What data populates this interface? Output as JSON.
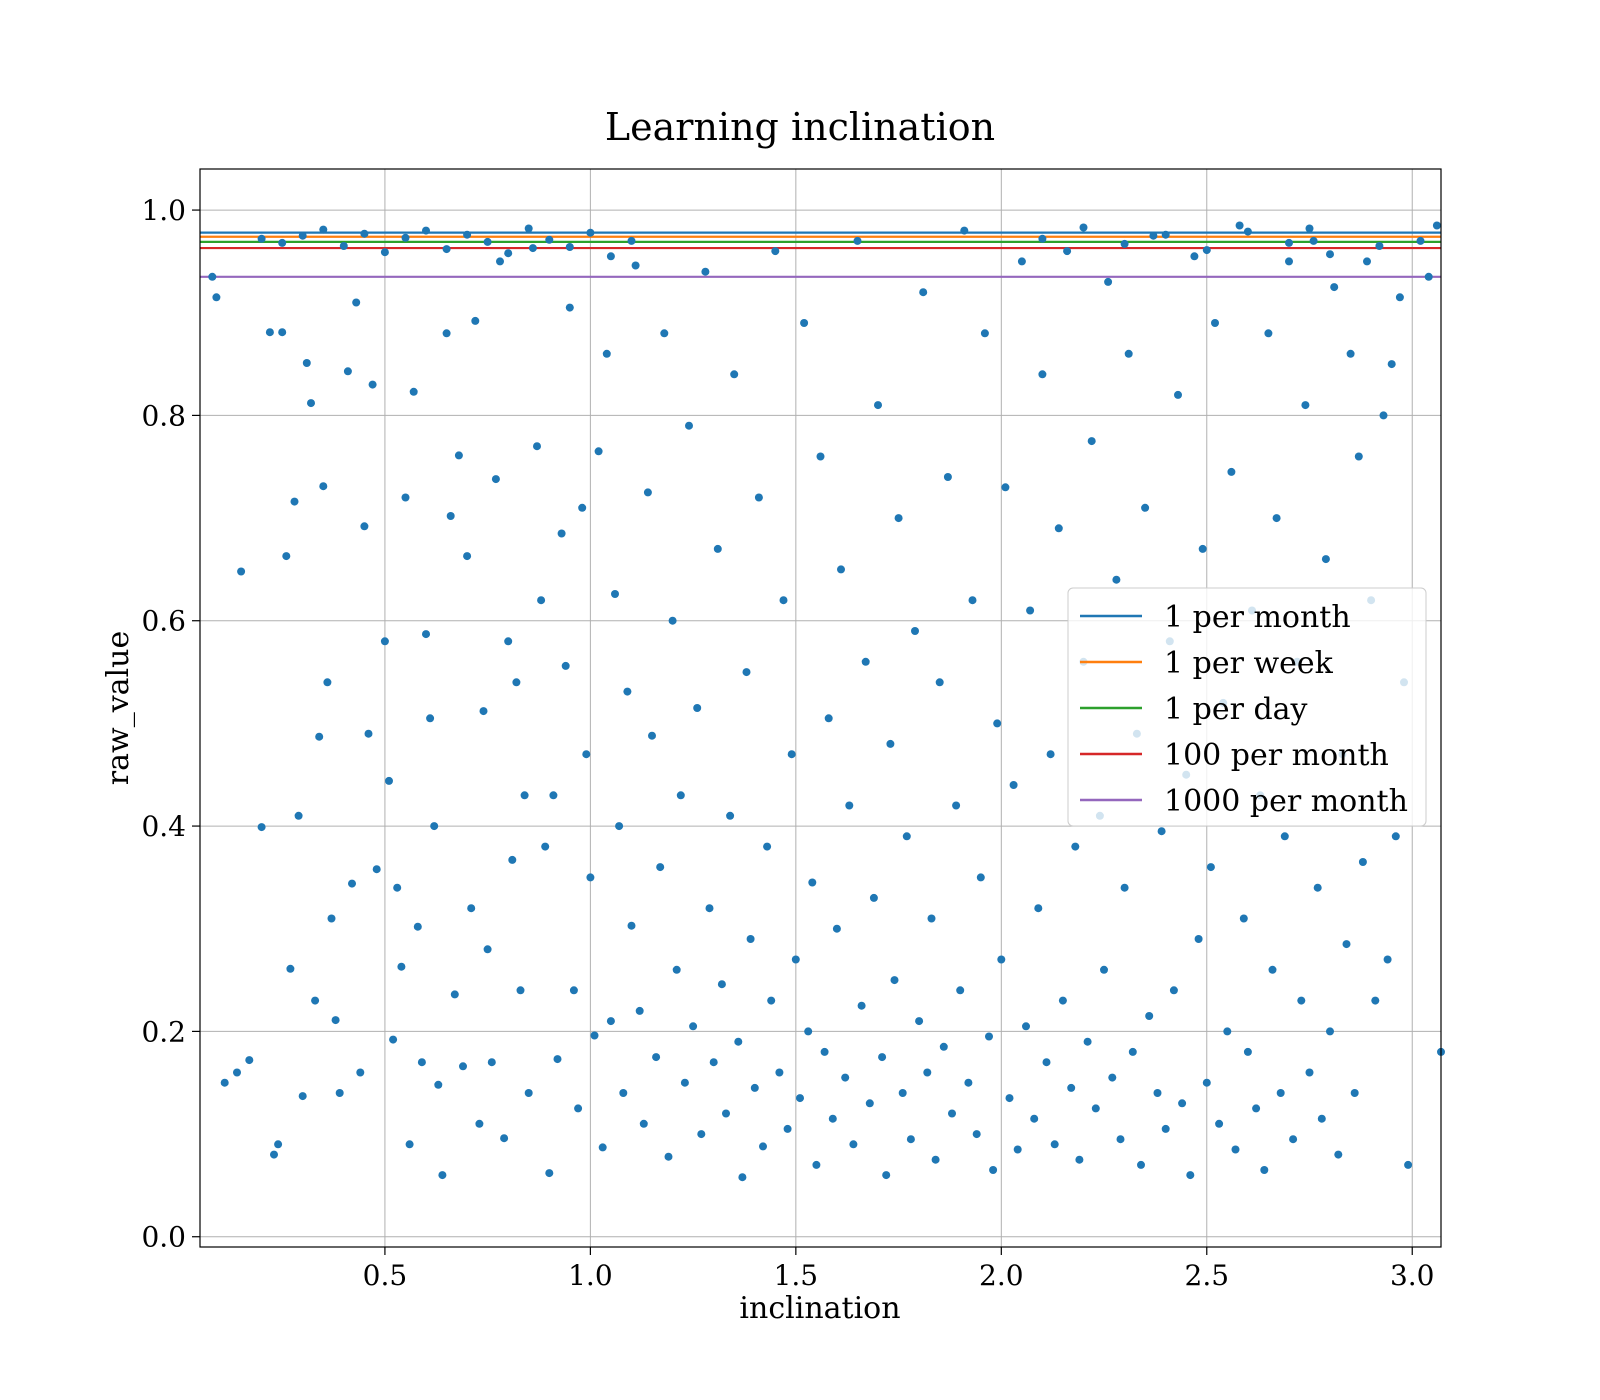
{
  "chart_data": {
    "type": "scatter",
    "title": "Learning inclination",
    "xlabel": "inclination",
    "ylabel": "raw_value",
    "xlim": [
      0.05,
      3.07
    ],
    "ylim": [
      -0.01,
      1.04
    ],
    "xticks": [
      0.5,
      1.0,
      1.5,
      2.0,
      2.5,
      3.0
    ],
    "xtick_labels": [
      "0.5",
      "1.0",
      "1.5",
      "2.0",
      "2.5",
      "3.0"
    ],
    "yticks": [
      0.0,
      0.2,
      0.4,
      0.6,
      0.8,
      1.0
    ],
    "ytick_labels": [
      "0.0",
      "0.2",
      "0.4",
      "0.6",
      "0.8",
      "1.0"
    ],
    "grid": true,
    "legend_position": "center-right",
    "point_color": "#1f77b4",
    "hlines": [
      {
        "name": "1 per month",
        "y": 0.978,
        "color": "#1f77b4"
      },
      {
        "name": "1 per week",
        "y": 0.974,
        "color": "#ff7f0e"
      },
      {
        "name": "1 per day",
        "y": 0.969,
        "color": "#2ca02c"
      },
      {
        "name": "100 per month",
        "y": 0.963,
        "color": "#d62728"
      },
      {
        "name": "1000 per month",
        "y": 0.935,
        "color": "#9467bd"
      }
    ],
    "points": [
      [
        0.08,
        0.935
      ],
      [
        0.09,
        0.915
      ],
      [
        0.11,
        0.15
      ],
      [
        0.14,
        0.16
      ],
      [
        0.15,
        0.648
      ],
      [
        0.17,
        0.172
      ],
      [
        0.2,
        0.399
      ],
      [
        0.22,
        0.881
      ],
      [
        0.23,
        0.08
      ],
      [
        0.24,
        0.09
      ],
      [
        0.25,
        0.881
      ],
      [
        0.26,
        0.663
      ],
      [
        0.27,
        0.261
      ],
      [
        0.28,
        0.716
      ],
      [
        0.29,
        0.41
      ],
      [
        0.3,
        0.137
      ],
      [
        0.31,
        0.851
      ],
      [
        0.32,
        0.812
      ],
      [
        0.33,
        0.23
      ],
      [
        0.34,
        0.487
      ],
      [
        0.35,
        0.731
      ],
      [
        0.36,
        0.54
      ],
      [
        0.37,
        0.31
      ],
      [
        0.38,
        0.211
      ],
      [
        0.39,
        0.14
      ],
      [
        0.41,
        0.843
      ],
      [
        0.42,
        0.344
      ],
      [
        0.43,
        0.91
      ],
      [
        0.44,
        0.16
      ],
      [
        0.45,
        0.692
      ],
      [
        0.46,
        0.49
      ],
      [
        0.47,
        0.83
      ],
      [
        0.48,
        0.358
      ],
      [
        0.5,
        0.58
      ],
      [
        0.51,
        0.444
      ],
      [
        0.52,
        0.192
      ],
      [
        0.53,
        0.34
      ],
      [
        0.54,
        0.263
      ],
      [
        0.55,
        0.72
      ],
      [
        0.56,
        0.09
      ],
      [
        0.57,
        0.823
      ],
      [
        0.58,
        0.302
      ],
      [
        0.59,
        0.17
      ],
      [
        0.6,
        0.587
      ],
      [
        0.61,
        0.505
      ],
      [
        0.62,
        0.4
      ],
      [
        0.63,
        0.148
      ],
      [
        0.64,
        0.06
      ],
      [
        0.65,
        0.88
      ],
      [
        0.66,
        0.702
      ],
      [
        0.67,
        0.236
      ],
      [
        0.68,
        0.761
      ],
      [
        0.69,
        0.166
      ],
      [
        0.7,
        0.663
      ],
      [
        0.71,
        0.32
      ],
      [
        0.72,
        0.892
      ],
      [
        0.73,
        0.11
      ],
      [
        0.74,
        0.512
      ],
      [
        0.75,
        0.28
      ],
      [
        0.76,
        0.17
      ],
      [
        0.77,
        0.738
      ],
      [
        0.78,
        0.95
      ],
      [
        0.79,
        0.096
      ],
      [
        0.8,
        0.58
      ],
      [
        0.81,
        0.367
      ],
      [
        0.82,
        0.54
      ],
      [
        0.83,
        0.24
      ],
      [
        0.84,
        0.43
      ],
      [
        0.85,
        0.14
      ],
      [
        0.86,
        0.963
      ],
      [
        0.87,
        0.77
      ],
      [
        0.88,
        0.62
      ],
      [
        0.89,
        0.38
      ],
      [
        0.9,
        0.062
      ],
      [
        0.91,
        0.43
      ],
      [
        0.92,
        0.173
      ],
      [
        0.93,
        0.685
      ],
      [
        0.94,
        0.556
      ],
      [
        0.95,
        0.905
      ],
      [
        0.96,
        0.24
      ],
      [
        0.97,
        0.125
      ],
      [
        0.98,
        0.71
      ],
      [
        0.99,
        0.47
      ],
      [
        1.0,
        0.35
      ],
      [
        1.01,
        0.196
      ],
      [
        1.02,
        0.765
      ],
      [
        1.03,
        0.087
      ],
      [
        1.04,
        0.86
      ],
      [
        1.05,
        0.21
      ],
      [
        1.06,
        0.626
      ],
      [
        1.07,
        0.4
      ],
      [
        1.08,
        0.14
      ],
      [
        1.09,
        0.531
      ],
      [
        1.1,
        0.303
      ],
      [
        1.11,
        0.946
      ],
      [
        1.12,
        0.22
      ],
      [
        1.13,
        0.11
      ],
      [
        1.14,
        0.725
      ],
      [
        1.15,
        0.488
      ],
      [
        1.16,
        0.175
      ],
      [
        1.17,
        0.36
      ],
      [
        1.18,
        0.88
      ],
      [
        1.19,
        0.078
      ],
      [
        1.2,
        0.6
      ],
      [
        1.21,
        0.26
      ],
      [
        1.22,
        0.43
      ],
      [
        1.23,
        0.15
      ],
      [
        1.24,
        0.79
      ],
      [
        1.25,
        0.205
      ],
      [
        1.26,
        0.515
      ],
      [
        1.27,
        0.1
      ],
      [
        1.28,
        0.94
      ],
      [
        1.29,
        0.32
      ],
      [
        1.3,
        0.17
      ],
      [
        1.31,
        0.67
      ],
      [
        1.32,
        0.246
      ],
      [
        1.33,
        0.12
      ],
      [
        1.34,
        0.41
      ],
      [
        1.35,
        0.84
      ],
      [
        1.36,
        0.19
      ],
      [
        1.37,
        0.058
      ],
      [
        1.38,
        0.55
      ],
      [
        1.39,
        0.29
      ],
      [
        1.4,
        0.145
      ],
      [
        1.41,
        0.72
      ],
      [
        1.42,
        0.088
      ],
      [
        1.43,
        0.38
      ],
      [
        1.44,
        0.23
      ],
      [
        1.45,
        0.96
      ],
      [
        1.46,
        0.16
      ],
      [
        1.47,
        0.62
      ],
      [
        1.48,
        0.105
      ],
      [
        1.49,
        0.47
      ],
      [
        1.5,
        0.27
      ],
      [
        1.51,
        0.135
      ],
      [
        1.52,
        0.89
      ],
      [
        1.53,
        0.2
      ],
      [
        1.54,
        0.345
      ],
      [
        1.55,
        0.07
      ],
      [
        1.56,
        0.76
      ],
      [
        1.57,
        0.18
      ],
      [
        1.58,
        0.505
      ],
      [
        1.59,
        0.115
      ],
      [
        1.6,
        0.3
      ],
      [
        1.61,
        0.65
      ],
      [
        1.62,
        0.155
      ],
      [
        1.63,
        0.42
      ],
      [
        1.64,
        0.09
      ],
      [
        1.65,
        0.97
      ],
      [
        1.66,
        0.225
      ],
      [
        1.67,
        0.56
      ],
      [
        1.68,
        0.13
      ],
      [
        1.69,
        0.33
      ],
      [
        1.7,
        0.81
      ],
      [
        1.71,
        0.175
      ],
      [
        1.72,
        0.06
      ],
      [
        1.73,
        0.48
      ],
      [
        1.74,
        0.25
      ],
      [
        1.75,
        0.7
      ],
      [
        1.76,
        0.14
      ],
      [
        1.77,
        0.39
      ],
      [
        1.78,
        0.095
      ],
      [
        1.79,
        0.59
      ],
      [
        1.8,
        0.21
      ],
      [
        1.81,
        0.92
      ],
      [
        1.82,
        0.16
      ],
      [
        1.83,
        0.31
      ],
      [
        1.84,
        0.075
      ],
      [
        1.85,
        0.54
      ],
      [
        1.86,
        0.185
      ],
      [
        1.87,
        0.74
      ],
      [
        1.88,
        0.12
      ],
      [
        1.89,
        0.42
      ],
      [
        1.9,
        0.24
      ],
      [
        1.91,
        0.98
      ],
      [
        1.92,
        0.15
      ],
      [
        1.93,
        0.62
      ],
      [
        1.94,
        0.1
      ],
      [
        1.95,
        0.35
      ],
      [
        1.96,
        0.88
      ],
      [
        1.97,
        0.195
      ],
      [
        1.98,
        0.065
      ],
      [
        1.99,
        0.5
      ],
      [
        2.0,
        0.27
      ],
      [
        2.01,
        0.73
      ],
      [
        2.02,
        0.135
      ],
      [
        2.03,
        0.44
      ],
      [
        2.04,
        0.085
      ],
      [
        2.05,
        0.95
      ],
      [
        2.06,
        0.205
      ],
      [
        2.07,
        0.61
      ],
      [
        2.08,
        0.115
      ],
      [
        2.09,
        0.32
      ],
      [
        2.1,
        0.84
      ],
      [
        2.11,
        0.17
      ],
      [
        2.12,
        0.47
      ],
      [
        2.13,
        0.09
      ],
      [
        2.14,
        0.69
      ],
      [
        2.15,
        0.23
      ],
      [
        2.16,
        0.96
      ],
      [
        2.17,
        0.145
      ],
      [
        2.18,
        0.38
      ],
      [
        2.19,
        0.075
      ],
      [
        2.2,
        0.56
      ],
      [
        2.21,
        0.19
      ],
      [
        2.22,
        0.775
      ],
      [
        2.23,
        0.125
      ],
      [
        2.24,
        0.41
      ],
      [
        2.25,
        0.26
      ],
      [
        2.26,
        0.93
      ],
      [
        2.27,
        0.155
      ],
      [
        2.28,
        0.64
      ],
      [
        2.29,
        0.095
      ],
      [
        2.3,
        0.34
      ],
      [
        2.31,
        0.86
      ],
      [
        2.32,
        0.18
      ],
      [
        2.33,
        0.49
      ],
      [
        2.34,
        0.07
      ],
      [
        2.35,
        0.71
      ],
      [
        2.36,
        0.215
      ],
      [
        2.37,
        0.975
      ],
      [
        2.38,
        0.14
      ],
      [
        2.39,
        0.395
      ],
      [
        2.4,
        0.105
      ],
      [
        2.41,
        0.58
      ],
      [
        2.42,
        0.24
      ],
      [
        2.43,
        0.82
      ],
      [
        2.44,
        0.13
      ],
      [
        2.45,
        0.45
      ],
      [
        2.46,
        0.06
      ],
      [
        2.47,
        0.955
      ],
      [
        2.48,
        0.29
      ],
      [
        2.49,
        0.67
      ],
      [
        2.5,
        0.15
      ],
      [
        2.51,
        0.36
      ],
      [
        2.52,
        0.89
      ],
      [
        2.53,
        0.11
      ],
      [
        2.54,
        0.52
      ],
      [
        2.55,
        0.2
      ],
      [
        2.56,
        0.745
      ],
      [
        2.57,
        0.085
      ],
      [
        2.58,
        0.985
      ],
      [
        2.59,
        0.31
      ],
      [
        2.6,
        0.18
      ],
      [
        2.61,
        0.61
      ],
      [
        2.62,
        0.125
      ],
      [
        2.63,
        0.43
      ],
      [
        2.64,
        0.065
      ],
      [
        2.65,
        0.88
      ],
      [
        2.66,
        0.26
      ],
      [
        2.67,
        0.7
      ],
      [
        2.68,
        0.14
      ],
      [
        2.69,
        0.39
      ],
      [
        2.7,
        0.95
      ],
      [
        2.71,
        0.095
      ],
      [
        2.72,
        0.56
      ],
      [
        2.73,
        0.23
      ],
      [
        2.74,
        0.81
      ],
      [
        2.75,
        0.16
      ],
      [
        2.76,
        0.97
      ],
      [
        2.77,
        0.34
      ],
      [
        2.78,
        0.115
      ],
      [
        2.79,
        0.66
      ],
      [
        2.8,
        0.2
      ],
      [
        2.81,
        0.925
      ],
      [
        2.82,
        0.08
      ],
      [
        2.83,
        0.47
      ],
      [
        2.84,
        0.285
      ],
      [
        2.85,
        0.86
      ],
      [
        2.86,
        0.14
      ],
      [
        2.87,
        0.76
      ],
      [
        2.88,
        0.365
      ],
      [
        2.89,
        0.95
      ],
      [
        2.9,
        0.62
      ],
      [
        2.91,
        0.23
      ],
      [
        2.92,
        0.965
      ],
      [
        2.93,
        0.8
      ],
      [
        2.94,
        0.27
      ],
      [
        2.95,
        0.85
      ],
      [
        2.96,
        0.39
      ],
      [
        2.97,
        0.915
      ],
      [
        2.98,
        0.54
      ],
      [
        2.99,
        0.07
      ],
      [
        3.02,
        0.97
      ],
      [
        3.04,
        0.935
      ],
      [
        3.06,
        0.985
      ],
      [
        3.07,
        0.18
      ],
      [
        0.2,
        0.972
      ],
      [
        0.25,
        0.968
      ],
      [
        0.3,
        0.975
      ],
      [
        0.35,
        0.981
      ],
      [
        0.4,
        0.965
      ],
      [
        0.45,
        0.977
      ],
      [
        0.5,
        0.959
      ],
      [
        0.55,
        0.973
      ],
      [
        0.6,
        0.98
      ],
      [
        0.65,
        0.962
      ],
      [
        0.7,
        0.976
      ],
      [
        0.75,
        0.969
      ],
      [
        0.8,
        0.958
      ],
      [
        0.85,
        0.982
      ],
      [
        0.9,
        0.971
      ],
      [
        0.95,
        0.964
      ],
      [
        1.0,
        0.978
      ],
      [
        1.05,
        0.955
      ],
      [
        1.1,
        0.97
      ],
      [
        2.1,
        0.972
      ],
      [
        2.2,
        0.983
      ],
      [
        2.3,
        0.967
      ],
      [
        2.4,
        0.976
      ],
      [
        2.5,
        0.961
      ],
      [
        2.6,
        0.979
      ],
      [
        2.7,
        0.968
      ],
      [
        2.75,
        0.982
      ],
      [
        2.8,
        0.957
      ]
    ]
  }
}
